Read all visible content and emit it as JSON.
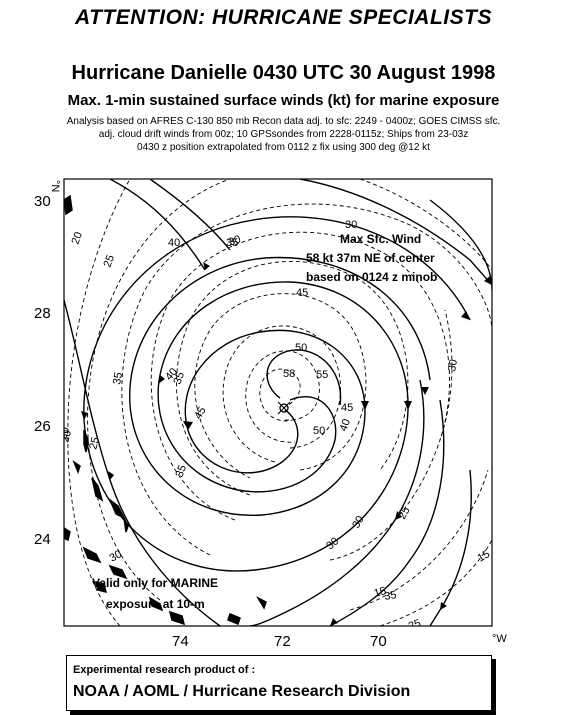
{
  "header": {
    "attention": "ATTENTION: HURRICANE SPECIALISTS",
    "title": "Hurricane Danielle 0430 UTC 30 August 1998",
    "subtitle": "Max. 1-min sustained surface winds (kt) for marine exposure",
    "notes": [
      "Analysis based on  AFRES C-130 850 mb Recon data  adj. to sfc: 2249 - 0400z; GOES CIMSS sfc.",
      "adj. cloud drift winds from 00z; 10 GPSsondes from 2228-0115z; Ships from 23-03z",
      "0430 z position extrapolated from 0112 z fix using 300 deg @12 kt"
    ]
  },
  "map": {
    "lat_ticks": [
      "30",
      "28",
      "26",
      "24"
    ],
    "lon_ticks": [
      "74",
      "72",
      "70"
    ],
    "lat_unit": "°N",
    "lon_unit": "°W",
    "max_wind_box": [
      "Max Sfc. Wind",
      "58 kt  37m  NE of center",
      "based on 0124 z minob"
    ],
    "valid_note": [
      "Valid only for MARINE",
      "exposure at 10-m"
    ],
    "isotach_labels": [
      "30",
      "35",
      "40",
      "45",
      "50",
      "55",
      "58",
      "45",
      "50",
      "40",
      "35",
      "30",
      "25",
      "20",
      "30",
      "25",
      "35",
      "30",
      "40",
      "45",
      "35",
      "30",
      "25",
      "20",
      "15",
      "20",
      "25",
      "30",
      "35",
      "15"
    ],
    "colors": {
      "streamline": "#000000",
      "isotach": "#000000",
      "land": "#000000",
      "background": "#ffffff"
    }
  },
  "footer": {
    "line1": "Experimental research product of :",
    "line2": "NOAA / AOML / Hurricane Research Division"
  }
}
